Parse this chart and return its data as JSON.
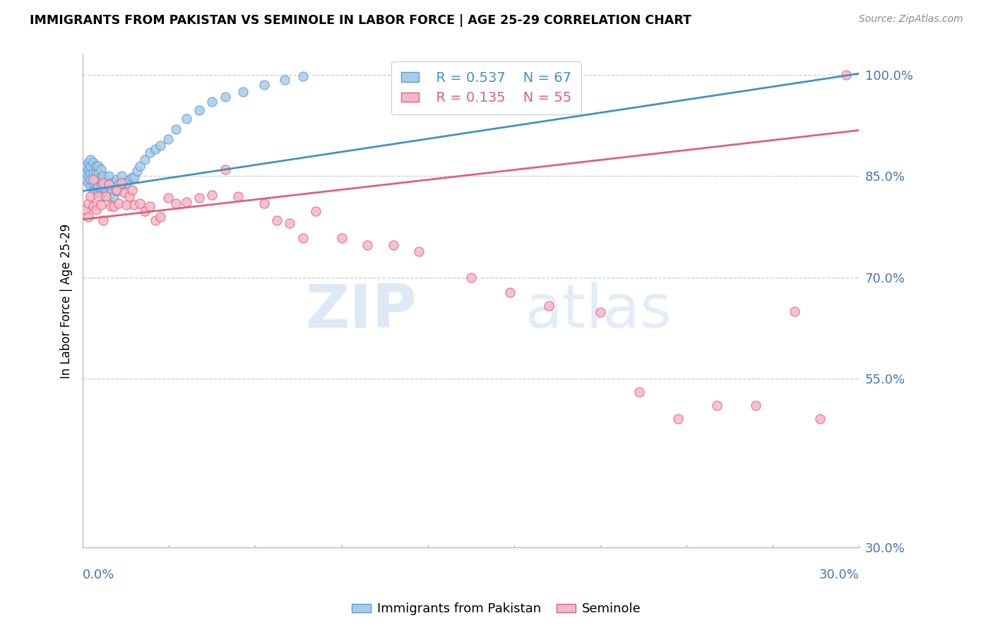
{
  "title": "IMMIGRANTS FROM PAKISTAN VS SEMINOLE IN LABOR FORCE | AGE 25-29 CORRELATION CHART",
  "source": "Source: ZipAtlas.com",
  "ylabel": "In Labor Force | Age 25-29",
  "xlim": [
    0.0,
    0.3
  ],
  "ylim": [
    0.3,
    1.03
  ],
  "ytick_vals": [
    0.3,
    0.55,
    0.7,
    0.85,
    1.0
  ],
  "ytick_labels": [
    "30.0%",
    "55.0%",
    "70.0%",
    "85.0%",
    "100.0%"
  ],
  "grid_vals": [
    0.55,
    0.7,
    0.85,
    1.0
  ],
  "blue_fill": "#a8cce8",
  "pink_fill": "#f5b8c8",
  "blue_edge": "#5b9bd5",
  "pink_edge": "#e0607a",
  "line_blue": "#4292c6",
  "line_pink": "#e06080",
  "legend_r1": "R = 0.537",
  "legend_n1": "N = 67",
  "legend_r2": "R = 0.135",
  "legend_n2": "N = 55",
  "pakistan_x": [
    0.001,
    0.001,
    0.001,
    0.002,
    0.002,
    0.002,
    0.002,
    0.003,
    0.003,
    0.003,
    0.003,
    0.003,
    0.004,
    0.004,
    0.004,
    0.004,
    0.005,
    0.005,
    0.005,
    0.005,
    0.006,
    0.006,
    0.006,
    0.006,
    0.006,
    0.007,
    0.007,
    0.007,
    0.007,
    0.008,
    0.008,
    0.008,
    0.009,
    0.009,
    0.01,
    0.01,
    0.01,
    0.011,
    0.011,
    0.012,
    0.012,
    0.013,
    0.013,
    0.014,
    0.015,
    0.015,
    0.016,
    0.017,
    0.018,
    0.019,
    0.02,
    0.021,
    0.022,
    0.024,
    0.026,
    0.028,
    0.03,
    0.033,
    0.036,
    0.04,
    0.045,
    0.05,
    0.055,
    0.062,
    0.07,
    0.078,
    0.085
  ],
  "pakistan_y": [
    0.845,
    0.855,
    0.865,
    0.84,
    0.85,
    0.86,
    0.87,
    0.835,
    0.845,
    0.855,
    0.865,
    0.875,
    0.83,
    0.84,
    0.855,
    0.87,
    0.83,
    0.84,
    0.855,
    0.865,
    0.825,
    0.835,
    0.845,
    0.855,
    0.865,
    0.825,
    0.835,
    0.848,
    0.86,
    0.82,
    0.835,
    0.85,
    0.825,
    0.84,
    0.82,
    0.835,
    0.85,
    0.825,
    0.84,
    0.82,
    0.84,
    0.828,
    0.845,
    0.838,
    0.835,
    0.85,
    0.84,
    0.84,
    0.845,
    0.848,
    0.848,
    0.858,
    0.865,
    0.875,
    0.885,
    0.89,
    0.895,
    0.905,
    0.92,
    0.935,
    0.948,
    0.96,
    0.968,
    0.975,
    0.985,
    0.993,
    0.998
  ],
  "seminole_x": [
    0.001,
    0.002,
    0.002,
    0.003,
    0.004,
    0.004,
    0.005,
    0.006,
    0.007,
    0.008,
    0.008,
    0.009,
    0.01,
    0.011,
    0.012,
    0.013,
    0.014,
    0.015,
    0.016,
    0.017,
    0.018,
    0.019,
    0.02,
    0.022,
    0.024,
    0.026,
    0.028,
    0.03,
    0.033,
    0.036,
    0.04,
    0.045,
    0.05,
    0.055,
    0.06,
    0.07,
    0.075,
    0.08,
    0.085,
    0.09,
    0.1,
    0.11,
    0.12,
    0.13,
    0.15,
    0.165,
    0.18,
    0.2,
    0.215,
    0.23,
    0.245,
    0.26,
    0.275,
    0.285,
    0.295
  ],
  "seminole_y": [
    0.8,
    0.81,
    0.79,
    0.82,
    0.805,
    0.845,
    0.8,
    0.82,
    0.808,
    0.84,
    0.785,
    0.82,
    0.838,
    0.805,
    0.805,
    0.83,
    0.81,
    0.84,
    0.825,
    0.808,
    0.82,
    0.83,
    0.808,
    0.81,
    0.798,
    0.805,
    0.785,
    0.79,
    0.818,
    0.81,
    0.812,
    0.818,
    0.822,
    0.86,
    0.82,
    0.81,
    0.785,
    0.78,
    0.758,
    0.798,
    0.758,
    0.748,
    0.748,
    0.738,
    0.7,
    0.678,
    0.658,
    0.648,
    0.53,
    0.49,
    0.51,
    0.51,
    0.65,
    0.49,
    1.0
  ],
  "reg_blue": [
    0.828,
    1.002
  ],
  "reg_pink": [
    0.786,
    0.918
  ]
}
